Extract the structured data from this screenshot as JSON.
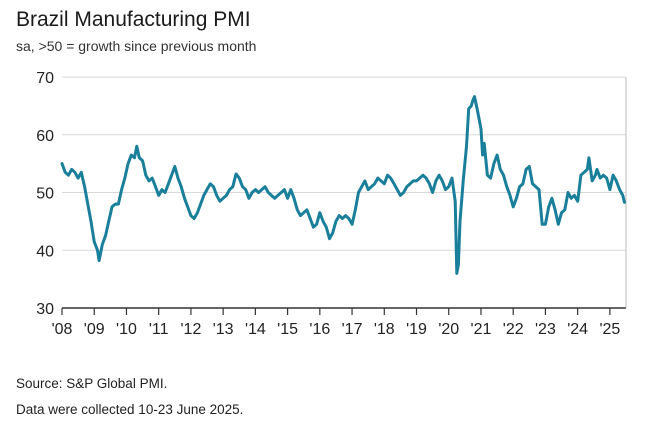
{
  "chart_data": {
    "type": "line",
    "title": "Brazil Manufacturing PMI",
    "subtitle": "sa, >50 = growth since previous month",
    "xlabel": "",
    "ylabel": "",
    "ylim": [
      30,
      70
    ],
    "yticks": [
      30,
      40,
      50,
      60,
      70
    ],
    "xlim": [
      2008.0,
      2025.5
    ],
    "xticks": [
      {
        "value": 2008,
        "label": "'08"
      },
      {
        "value": 2009,
        "label": "'09"
      },
      {
        "value": 2010,
        "label": "'10"
      },
      {
        "value": 2011,
        "label": "'11"
      },
      {
        "value": 2012,
        "label": "'12"
      },
      {
        "value": 2013,
        "label": "'13"
      },
      {
        "value": 2014,
        "label": "'14"
      },
      {
        "value": 2015,
        "label": "'15"
      },
      {
        "value": 2016,
        "label": "'16"
      },
      {
        "value": 2017,
        "label": "'17"
      },
      {
        "value": 2018,
        "label": "'18"
      },
      {
        "value": 2019,
        "label": "'19"
      },
      {
        "value": 2020,
        "label": "'20"
      },
      {
        "value": 2021,
        "label": "'21"
      },
      {
        "value": 2022,
        "label": "'22"
      },
      {
        "value": 2023,
        "label": "'23"
      },
      {
        "value": 2024,
        "label": "'24"
      },
      {
        "value": 2025,
        "label": "'25"
      }
    ],
    "grid": true,
    "series": [
      {
        "name": "Brazil Manufacturing PMI",
        "color": "#1a7f9a",
        "points": [
          [
            2008.0,
            55
          ],
          [
            2008.1,
            53.5
          ],
          [
            2008.2,
            53
          ],
          [
            2008.3,
            54
          ],
          [
            2008.4,
            53.5
          ],
          [
            2008.5,
            52.5
          ],
          [
            2008.6,
            53.5
          ],
          [
            2008.7,
            51
          ],
          [
            2008.8,
            48
          ],
          [
            2008.9,
            45
          ],
          [
            2009.0,
            41.5
          ],
          [
            2009.1,
            40
          ],
          [
            2009.15,
            38.2
          ],
          [
            2009.25,
            41
          ],
          [
            2009.35,
            42.5
          ],
          [
            2009.45,
            45
          ],
          [
            2009.55,
            47.5
          ],
          [
            2009.65,
            48
          ],
          [
            2009.75,
            48
          ],
          [
            2009.85,
            50.5
          ],
          [
            2009.95,
            52.5
          ],
          [
            2010.05,
            55
          ],
          [
            2010.15,
            56.5
          ],
          [
            2010.25,
            56
          ],
          [
            2010.32,
            58
          ],
          [
            2010.4,
            56
          ],
          [
            2010.5,
            55.5
          ],
          [
            2010.6,
            53
          ],
          [
            2010.7,
            52
          ],
          [
            2010.8,
            52.5
          ],
          [
            2010.9,
            51
          ],
          [
            2011.0,
            49.5
          ],
          [
            2011.1,
            50.5
          ],
          [
            2011.2,
            50
          ],
          [
            2011.3,
            51.5
          ],
          [
            2011.4,
            53
          ],
          [
            2011.5,
            54.5
          ],
          [
            2011.6,
            52.5
          ],
          [
            2011.7,
            51
          ],
          [
            2011.8,
            49
          ],
          [
            2011.9,
            47.5
          ],
          [
            2012.0,
            46
          ],
          [
            2012.1,
            45.5
          ],
          [
            2012.2,
            46.5
          ],
          [
            2012.3,
            48
          ],
          [
            2012.4,
            49.5
          ],
          [
            2012.5,
            50.5
          ],
          [
            2012.6,
            51.5
          ],
          [
            2012.7,
            51
          ],
          [
            2012.8,
            49.5
          ],
          [
            2012.9,
            48.5
          ],
          [
            2013.0,
            49
          ],
          [
            2013.1,
            49.5
          ],
          [
            2013.2,
            50.5
          ],
          [
            2013.3,
            51
          ],
          [
            2013.4,
            53.2
          ],
          [
            2013.5,
            52.5
          ],
          [
            2013.6,
            51
          ],
          [
            2013.7,
            50.5
          ],
          [
            2013.8,
            49
          ],
          [
            2013.9,
            50
          ],
          [
            2014.0,
            50.5
          ],
          [
            2014.1,
            50
          ],
          [
            2014.2,
            50.5
          ],
          [
            2014.3,
            51
          ],
          [
            2014.4,
            50
          ],
          [
            2014.5,
            49.5
          ],
          [
            2014.6,
            49
          ],
          [
            2014.7,
            49.5
          ],
          [
            2014.8,
            50
          ],
          [
            2014.9,
            50.5
          ],
          [
            2015.0,
            49
          ],
          [
            2015.1,
            50.5
          ],
          [
            2015.2,
            49
          ],
          [
            2015.3,
            47
          ],
          [
            2015.4,
            46
          ],
          [
            2015.5,
            46.5
          ],
          [
            2015.6,
            47
          ],
          [
            2015.7,
            45.5
          ],
          [
            2015.8,
            44
          ],
          [
            2015.9,
            44.5
          ],
          [
            2016.0,
            46.5
          ],
          [
            2016.1,
            45
          ],
          [
            2016.2,
            44
          ],
          [
            2016.3,
            42
          ],
          [
            2016.4,
            43
          ],
          [
            2016.5,
            45
          ],
          [
            2016.6,
            46
          ],
          [
            2016.7,
            45.5
          ],
          [
            2016.8,
            46
          ],
          [
            2016.9,
            45.5
          ],
          [
            2017.0,
            44.5
          ],
          [
            2017.1,
            47
          ],
          [
            2017.2,
            50
          ],
          [
            2017.3,
            51
          ],
          [
            2017.4,
            52
          ],
          [
            2017.5,
            50.5
          ],
          [
            2017.6,
            51
          ],
          [
            2017.7,
            51.5
          ],
          [
            2017.8,
            52.5
          ],
          [
            2017.9,
            52
          ],
          [
            2018.0,
            51.5
          ],
          [
            2018.1,
            53
          ],
          [
            2018.2,
            52.5
          ],
          [
            2018.3,
            51.5
          ],
          [
            2018.4,
            50.5
          ],
          [
            2018.5,
            49.5
          ],
          [
            2018.6,
            50
          ],
          [
            2018.7,
            51
          ],
          [
            2018.8,
            51.5
          ],
          [
            2018.9,
            52
          ],
          [
            2019.0,
            52
          ],
          [
            2019.1,
            52.5
          ],
          [
            2019.2,
            53
          ],
          [
            2019.3,
            52.5
          ],
          [
            2019.4,
            51.5
          ],
          [
            2019.5,
            50
          ],
          [
            2019.6,
            52
          ],
          [
            2019.7,
            53
          ],
          [
            2019.8,
            52
          ],
          [
            2019.9,
            50.5
          ],
          [
            2020.0,
            51
          ],
          [
            2020.1,
            52.5
          ],
          [
            2020.2,
            48.5
          ],
          [
            2020.25,
            36
          ],
          [
            2020.3,
            37.5
          ],
          [
            2020.35,
            45
          ],
          [
            2020.45,
            52
          ],
          [
            2020.55,
            58
          ],
          [
            2020.62,
            64.5
          ],
          [
            2020.7,
            65
          ],
          [
            2020.75,
            66
          ],
          [
            2020.8,
            66.6
          ],
          [
            2020.9,
            64
          ],
          [
            2021.0,
            61
          ],
          [
            2021.05,
            56.5
          ],
          [
            2021.1,
            58.5
          ],
          [
            2021.2,
            53
          ],
          [
            2021.3,
            52.5
          ],
          [
            2021.4,
            55
          ],
          [
            2021.5,
            56.5
          ],
          [
            2021.6,
            54
          ],
          [
            2021.7,
            53
          ],
          [
            2021.8,
            51
          ],
          [
            2021.9,
            49.5
          ],
          [
            2022.0,
            47.5
          ],
          [
            2022.1,
            49
          ],
          [
            2022.2,
            51
          ],
          [
            2022.3,
            51.5
          ],
          [
            2022.4,
            54
          ],
          [
            2022.5,
            54.5
          ],
          [
            2022.6,
            51.5
          ],
          [
            2022.7,
            51
          ],
          [
            2022.8,
            50.5
          ],
          [
            2022.9,
            44.5
          ],
          [
            2023.0,
            44.5
          ],
          [
            2023.1,
            47.5
          ],
          [
            2023.2,
            49
          ],
          [
            2023.3,
            47
          ],
          [
            2023.4,
            44.5
          ],
          [
            2023.5,
            46.5
          ],
          [
            2023.6,
            47
          ],
          [
            2023.7,
            50
          ],
          [
            2023.8,
            49
          ],
          [
            2023.9,
            49.5
          ],
          [
            2024.0,
            48.5
          ],
          [
            2024.1,
            53
          ],
          [
            2024.2,
            53.5
          ],
          [
            2024.3,
            54
          ],
          [
            2024.35,
            56
          ],
          [
            2024.45,
            52
          ],
          [
            2024.55,
            53
          ],
          [
            2024.6,
            54
          ],
          [
            2024.7,
            52.5
          ],
          [
            2024.8,
            53
          ],
          [
            2024.9,
            52.5
          ],
          [
            2025.0,
            50.5
          ],
          [
            2025.1,
            53
          ],
          [
            2025.2,
            52
          ],
          [
            2025.3,
            50.5
          ],
          [
            2025.4,
            49.5
          ],
          [
            2025.45,
            48.3
          ]
        ]
      }
    ]
  },
  "footer": {
    "source": "Source: S&P Global PMI.",
    "note": "Data were collected 10-23 June 2025."
  }
}
